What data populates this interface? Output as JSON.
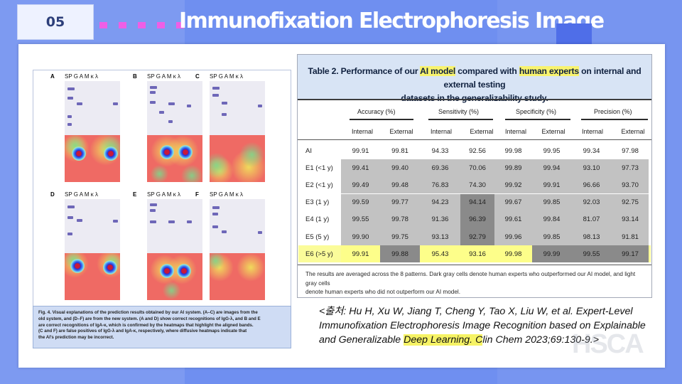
{
  "slide": {
    "number": "05",
    "title": "Immunofixation Electrophoresis Image",
    "colors": {
      "background": "#6f8ff0",
      "accent_dots": "#ee5fe6",
      "title_text": "#ffffff"
    }
  },
  "figure": {
    "lane_labels": "SP G A M κ λ",
    "panels": [
      "A",
      "B",
      "C",
      "D",
      "E",
      "F"
    ],
    "caption_lines": [
      "Fig. 4. Visual explanations of the prediction results obtained by our AI system. (A–C) are images from the",
      "old system, and (D–F) are from the new system. (A and D) show correct recognitions of IgG-λ, and B and E",
      "are correct recognitions of IgA-κ, which is confirmed by the heatmaps that highlight the aligned bands.",
      "(C and F) are false positives of IgG-λ and IgA-κ, respectively, where diffusive heatmaps indicate that",
      "the AI's prediction may be incorrect."
    ]
  },
  "table": {
    "title_part1": "Table 2.  Performance of our ",
    "title_hl1": "AI model",
    "title_part2": " compared with ",
    "title_hl2": "human experts",
    "title_part3": " on internal and external testing",
    "title_line2": "datasets in the generalizability study.",
    "groups": [
      "Accuracy (%)",
      "Sensitivity (%)",
      "Specificity (%)",
      "Precision (%)"
    ],
    "subheaders": [
      "Internal",
      "External",
      "Internal",
      "External",
      "Internal",
      "External",
      "Internal",
      "External"
    ],
    "rows": [
      {
        "label": "AI",
        "values": [
          "99.91",
          "99.81",
          "94.33",
          "92.56",
          "99.98",
          "99.95",
          "99.34",
          "97.98"
        ]
      },
      {
        "label": "E1 (<1 y)",
        "values": [
          "99.41",
          "99.40",
          "69.36",
          "70.06",
          "99.89",
          "99.94",
          "93.10",
          "97.73"
        ]
      },
      {
        "label": "E2 (<1 y)",
        "values": [
          "99.49",
          "99.48",
          "76.83",
          "74.30",
          "99.92",
          "99.91",
          "96.66",
          "93.70"
        ]
      },
      {
        "label": "E3 (1 y)",
        "values": [
          "99.59",
          "99.77",
          "94.23",
          "94.14",
          "99.67",
          "99.85",
          "92.03",
          "92.75"
        ]
      },
      {
        "label": "E4 (1 y)",
        "values": [
          "99.55",
          "99.78",
          "91.36",
          "96.39",
          "99.61",
          "99.84",
          "81.07",
          "93.14"
        ]
      },
      {
        "label": "E5 (5 y)",
        "values": [
          "99.90",
          "99.75",
          "93.13",
          "92.79",
          "99.96",
          "99.85",
          "98.13",
          "91.81"
        ]
      },
      {
        "label": "E6 (>5 y)",
        "values": [
          "99.91",
          "99.88",
          "95.43",
          "93.16",
          "99.98",
          "99.99",
          "99.55",
          "99.17"
        ]
      }
    ],
    "footnote_line1": "The results are averaged across the 8 patterns. Dark gray cells denote human experts who outperformed our AI model, and light gray cells",
    "footnote_line2": "denote human experts who did not outperform our AI model."
  },
  "citation": {
    "part1": "<출처: Hu H, Xu W, Jiang T, Cheng Y, Tao X, Liu W, et al. Expert-Level Immunofixation Electrophoresis Image Recognition based on Explainable and Generalizable ",
    "highlight": "Deep Learning. C",
    "part2": "lin Chem 2023;69:130-9.>"
  }
}
